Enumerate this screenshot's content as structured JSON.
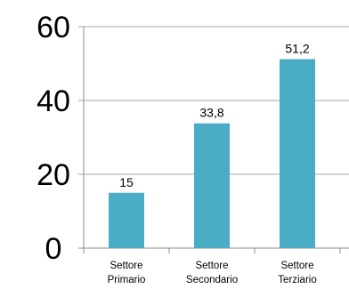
{
  "chart_data": {
    "type": "bar",
    "categories": [
      [
        "Settore",
        "Primario"
      ],
      [
        "Settore",
        "Secondario"
      ],
      [
        "Settore",
        "Terziario"
      ]
    ],
    "values": [
      15,
      33.8,
      51.2
    ],
    "value_labels": [
      "15",
      "33,8",
      "51,2"
    ],
    "yticks": [
      0,
      20,
      40,
      60
    ],
    "ytick_labels": [
      "0",
      "20",
      "40",
      "60"
    ],
    "ylim": [
      0,
      60
    ],
    "grid": true,
    "bar_color": "#4BACC6",
    "grid_color": "#A6A6A6",
    "axis_color": "#8C8C8C"
  }
}
